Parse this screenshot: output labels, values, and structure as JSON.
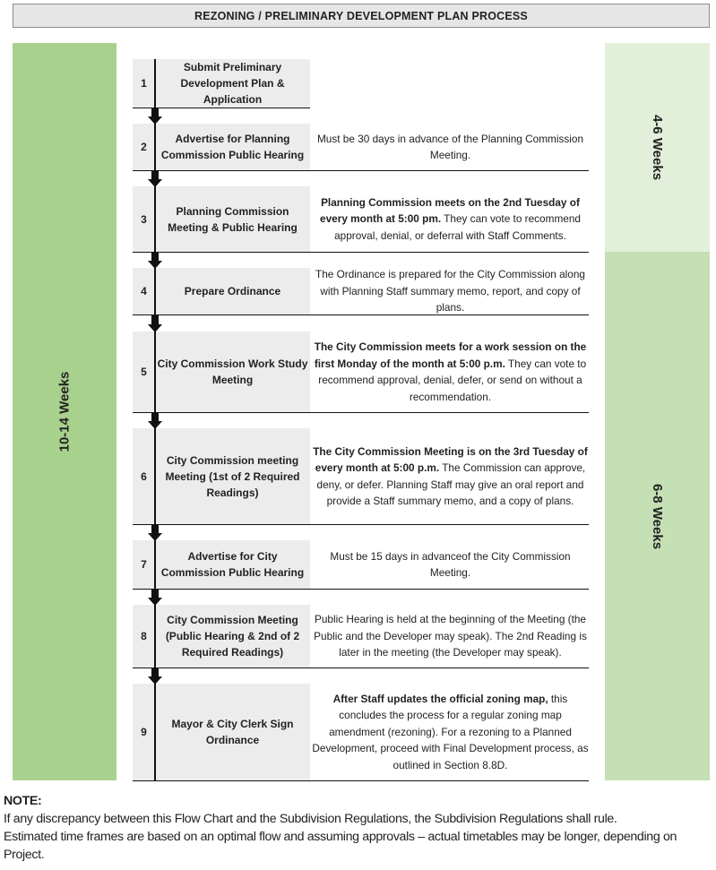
{
  "title": "REZONING / PRELIMINARY DEVELOPMENT PLAN PROCESS",
  "left_bar": {
    "label": "10-14 Weeks",
    "color": "#a9d18e"
  },
  "right_bars": [
    {
      "label": "4-6 Weeks",
      "color": "#e2efd9"
    },
    {
      "label": "6-8 Weeks",
      "color": "#c5e0b4"
    }
  ],
  "steps": [
    {
      "num": "1",
      "name": "Submit Preliminary Development Plan & Application",
      "desc_bold": "",
      "desc": ""
    },
    {
      "num": "2",
      "name": "Advertise for Planning Commission Public Hearing",
      "desc_bold": "",
      "desc": "Must be 30 days in advance of the Planning Commission Meeting."
    },
    {
      "num": "3",
      "name": "Planning Commission Meeting & Public Hearing",
      "desc_bold": "Planning Commission meets on the 2nd Tuesday of every month at 5:00 pm.",
      "desc": " They can vote to recommend approval, denial, or deferral with Staff Comments."
    },
    {
      "num": "4",
      "name": "Prepare Ordinance",
      "desc_bold": "",
      "desc": "The Ordinance is prepared for the City Commission along with Planning Staff summary memo, report, and copy of plans."
    },
    {
      "num": "5",
      "name": "City Commission Work Study Meeting",
      "desc_bold": "The City Commission meets for a work session on the first Monday of the month at 5:00 p.m.",
      "desc": " They can vote to recommend approval, denial, defer, or send on without a recommendation."
    },
    {
      "num": "6",
      "name": "City Commission meeting Meeting (1st of 2 Required Readings)",
      "desc_bold": "The City Commission Meeting is on the 3rd Tuesday of every month at 5:00 p.m.",
      "desc": " The Commission can approve, deny, or defer. Planning Staff may give an oral report and provide a Staff summary memo, and a copy of plans."
    },
    {
      "num": "7",
      "name": "Advertise for City Commission Public Hearing",
      "desc_bold": "",
      "desc": "Must be 15 days in advanceof the City Commission Meeting."
    },
    {
      "num": "8",
      "name": "City Commission Meeting (Public Hearing & 2nd of 2 Required Readings)",
      "desc_bold": "",
      "desc": "Public Hearing is held at the beginning of the Meeting (the Public and the Developer may speak). The 2nd Reading is later in the meeting (the Developer may speak)."
    },
    {
      "num": "9",
      "name": "Mayor & City Clerk Sign Ordinance",
      "desc_bold": "After Staff updates the official zoning map,",
      "desc": " this concludes the process for a regular zoning map amendment (rezoning). For a rezoning to a Planned Development, proceed with Final Development process, as outlined in Section 8.8D."
    }
  ],
  "note": {
    "heading": "NOTE:",
    "lines": [
      "If any discrepancy between this Flow Chart and the Subdivision Regulations, the Subdivision Regulations shall rule.",
      "Estimated time frames are based on an optimal flow and assuming approvals – actual timetables may be longer, depending on Project."
    ]
  }
}
